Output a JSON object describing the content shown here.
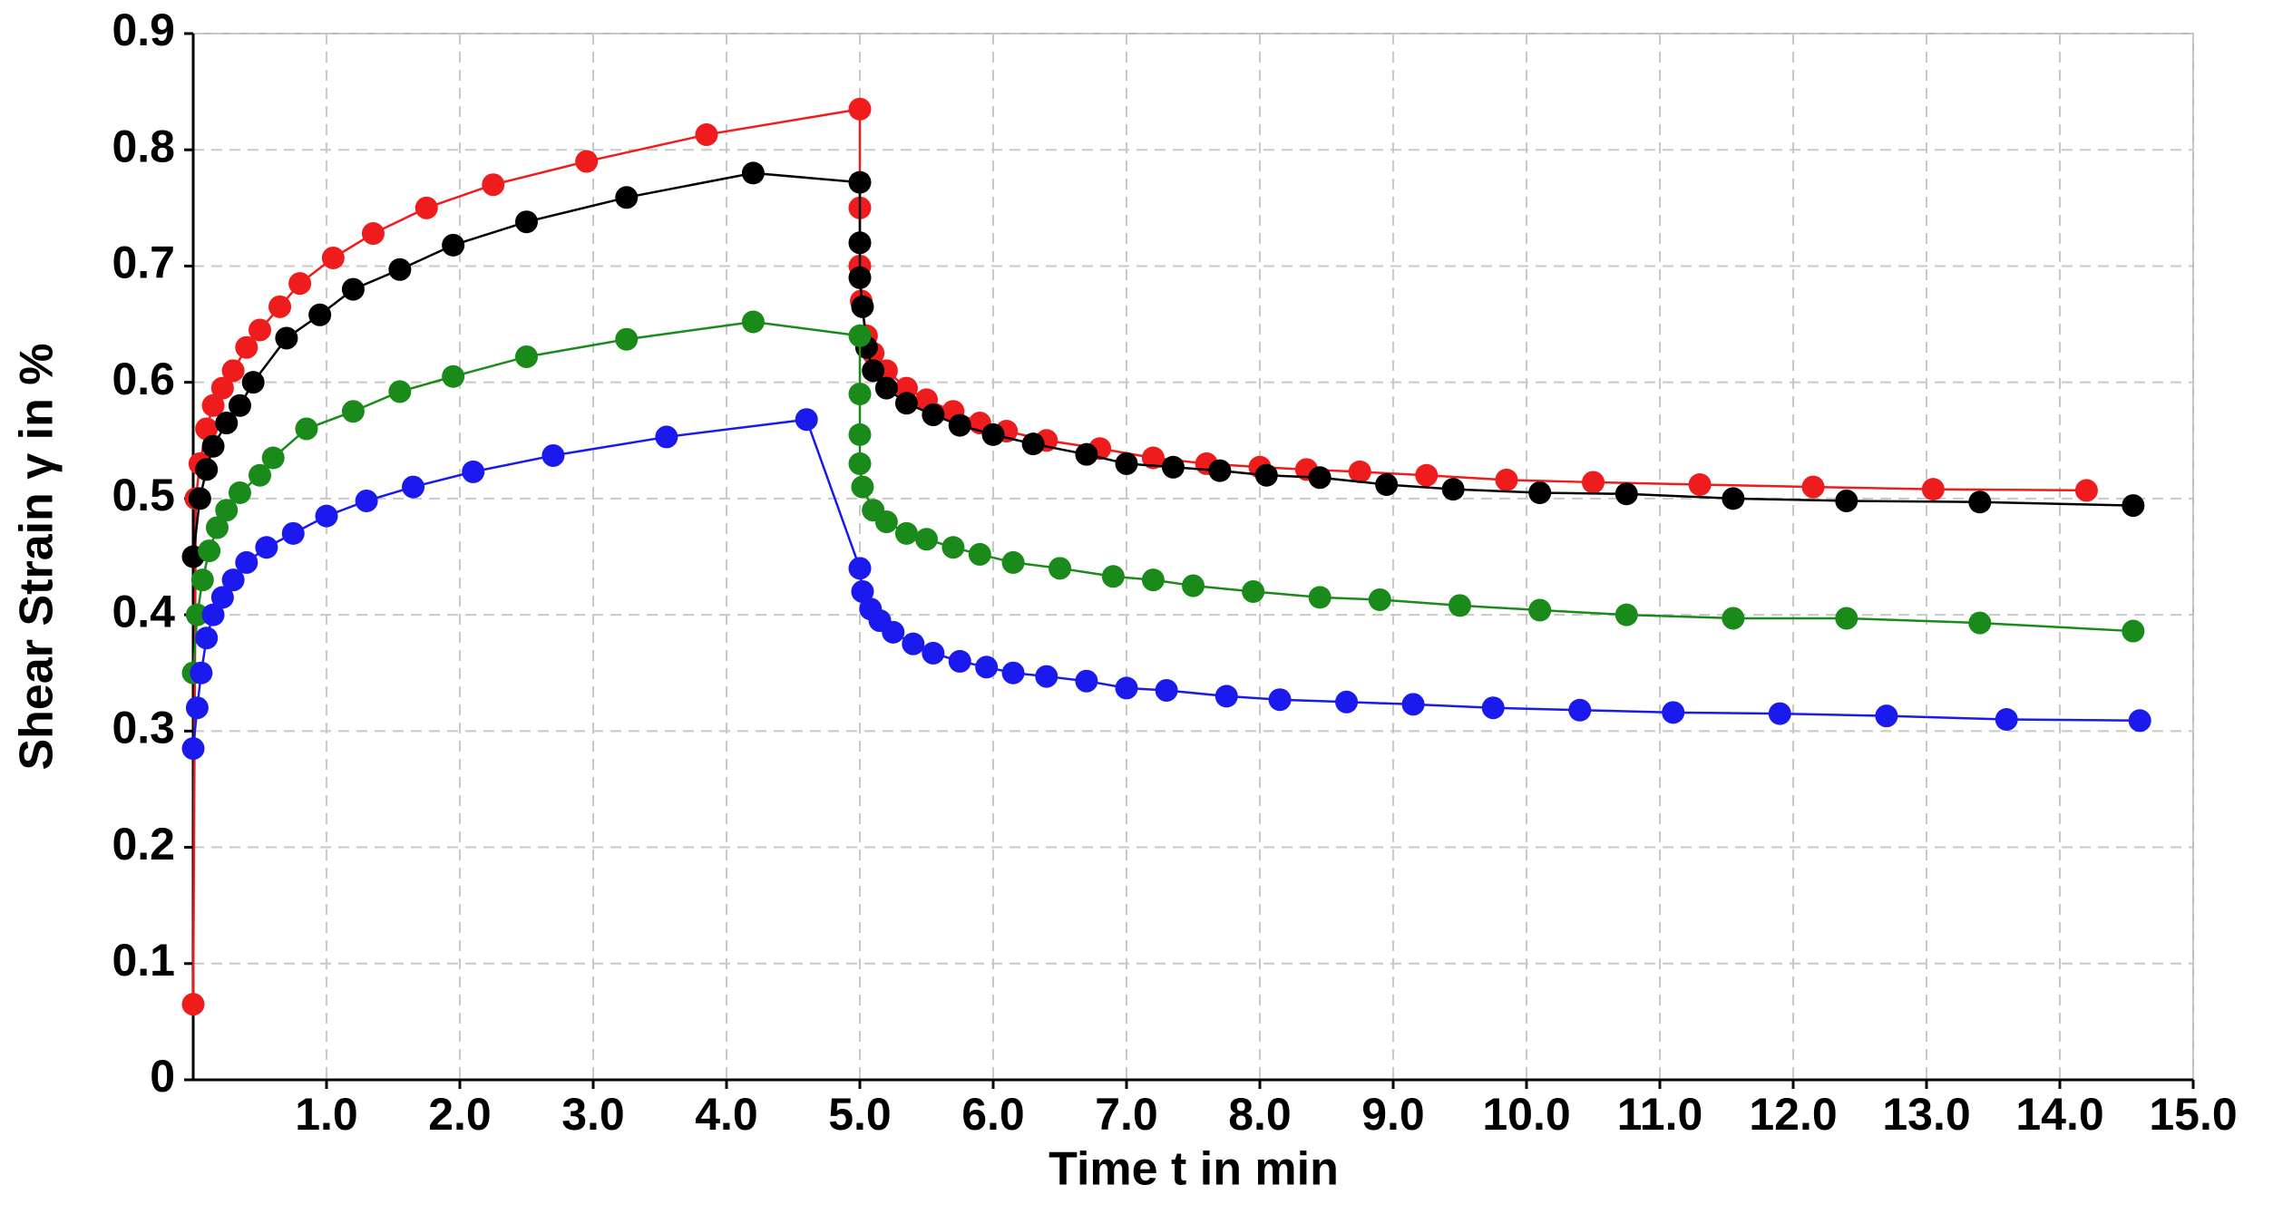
{
  "chart_data": {
    "type": "line",
    "xlabel": "Time t in min",
    "ylabel": "Shear Strain γ in %",
    "xlim": [
      0,
      15
    ],
    "ylim": [
      0,
      0.9
    ],
    "xticks": [
      {
        "value": 1,
        "label": "1.0"
      },
      {
        "value": 2,
        "label": "2.0"
      },
      {
        "value": 3,
        "label": "3.0"
      },
      {
        "value": 4,
        "label": "4.0"
      },
      {
        "value": 5,
        "label": "5.0"
      },
      {
        "value": 6,
        "label": "6.0"
      },
      {
        "value": 7,
        "label": "7.0"
      },
      {
        "value": 8,
        "label": "8.0"
      },
      {
        "value": 9,
        "label": "9.0"
      },
      {
        "value": 10,
        "label": "10.0"
      },
      {
        "value": 11,
        "label": "11.0"
      },
      {
        "value": 12,
        "label": "12.0"
      },
      {
        "value": 13,
        "label": "13.0"
      },
      {
        "value": 14,
        "label": "14.0"
      },
      {
        "value": 15,
        "label": "15.0"
      }
    ],
    "yticks": [
      0,
      0.1,
      0.2,
      0.3,
      0.4,
      0.5,
      0.6,
      0.7,
      0.8,
      0.9
    ],
    "grid": true,
    "series": [
      {
        "color": "#ee1c1c",
        "x": [
          0,
          0.02,
          0.05,
          0.1,
          0.15,
          0.22,
          0.3,
          0.4,
          0.5,
          0.65,
          0.8,
          1.05,
          1.35,
          1.75,
          2.25,
          2.95,
          3.85,
          5.0,
          5.0,
          5.0,
          5.01,
          5.05,
          5.1,
          5.2,
          5.35,
          5.5,
          5.7,
          5.9,
          6.1,
          6.4,
          6.8,
          7.2,
          7.6,
          8.0,
          8.35,
          8.75,
          9.25,
          9.85,
          10.5,
          11.3,
          12.15,
          13.05,
          14.2
        ],
        "values": [
          0.065,
          0.5,
          0.53,
          0.56,
          0.58,
          0.595,
          0.61,
          0.63,
          0.645,
          0.665,
          0.685,
          0.707,
          0.728,
          0.75,
          0.77,
          0.79,
          0.813,
          0.835,
          0.75,
          0.7,
          0.67,
          0.64,
          0.625,
          0.61,
          0.595,
          0.585,
          0.575,
          0.565,
          0.558,
          0.55,
          0.543,
          0.535,
          0.53,
          0.527,
          0.525,
          0.523,
          0.52,
          0.516,
          0.514,
          0.512,
          0.51,
          0.508,
          0.507
        ]
      },
      {
        "color": "#000000",
        "x": [
          0,
          0.05,
          0.1,
          0.15,
          0.25,
          0.35,
          0.45,
          0.7,
          0.95,
          1.2,
          1.55,
          1.95,
          2.5,
          3.25,
          4.2,
          5.0,
          5.0,
          5.0,
          5.02,
          5.05,
          5.1,
          5.2,
          5.35,
          5.55,
          5.75,
          6.0,
          6.3,
          6.7,
          7.0,
          7.35,
          7.7,
          8.05,
          8.45,
          8.95,
          9.45,
          10.1,
          10.75,
          11.55,
          12.4,
          13.4,
          14.55
        ],
        "values": [
          0.45,
          0.5,
          0.525,
          0.545,
          0.565,
          0.58,
          0.6,
          0.638,
          0.658,
          0.68,
          0.697,
          0.718,
          0.738,
          0.759,
          0.78,
          0.772,
          0.72,
          0.69,
          0.665,
          0.63,
          0.61,
          0.595,
          0.582,
          0.572,
          0.563,
          0.555,
          0.547,
          0.538,
          0.53,
          0.527,
          0.524,
          0.52,
          0.518,
          0.512,
          0.508,
          0.505,
          0.504,
          0.5,
          0.498,
          0.497,
          0.494
        ]
      },
      {
        "color": "#1a8a1a",
        "x": [
          0,
          0.03,
          0.07,
          0.12,
          0.18,
          0.25,
          0.35,
          0.5,
          0.6,
          0.85,
          1.2,
          1.55,
          1.95,
          2.5,
          3.25,
          4.2,
          5.0,
          5.0,
          5.0,
          5.0,
          5.02,
          5.1,
          5.2,
          5.35,
          5.5,
          5.7,
          5.9,
          6.15,
          6.5,
          6.9,
          7.2,
          7.5,
          7.95,
          8.45,
          8.9,
          9.5,
          10.1,
          10.75,
          11.55,
          12.4,
          13.4,
          14.55
        ],
        "values": [
          0.35,
          0.4,
          0.43,
          0.455,
          0.475,
          0.49,
          0.505,
          0.52,
          0.535,
          0.56,
          0.575,
          0.592,
          0.605,
          0.622,
          0.637,
          0.652,
          0.64,
          0.59,
          0.555,
          0.53,
          0.51,
          0.49,
          0.48,
          0.47,
          0.465,
          0.458,
          0.452,
          0.445,
          0.44,
          0.433,
          0.43,
          0.425,
          0.42,
          0.415,
          0.413,
          0.408,
          0.404,
          0.4,
          0.397,
          0.397,
          0.393,
          0.386
        ]
      },
      {
        "color": "#1a1aee",
        "x": [
          0,
          0.03,
          0.06,
          0.1,
          0.15,
          0.22,
          0.3,
          0.4,
          0.55,
          0.75,
          1.0,
          1.3,
          1.65,
          2.1,
          2.7,
          3.55,
          4.6,
          5.0,
          5.02,
          5.08,
          5.15,
          5.25,
          5.4,
          5.55,
          5.75,
          5.95,
          6.15,
          6.4,
          6.7,
          7.0,
          7.3,
          7.75,
          8.15,
          8.65,
          9.15,
          9.75,
          10.4,
          11.1,
          11.9,
          12.7,
          13.6,
          14.6
        ],
        "values": [
          0.285,
          0.32,
          0.35,
          0.38,
          0.4,
          0.415,
          0.43,
          0.445,
          0.458,
          0.47,
          0.485,
          0.498,
          0.51,
          0.523,
          0.537,
          0.553,
          0.568,
          0.44,
          0.42,
          0.405,
          0.395,
          0.385,
          0.375,
          0.367,
          0.36,
          0.355,
          0.35,
          0.347,
          0.343,
          0.337,
          0.335,
          0.33,
          0.327,
          0.325,
          0.323,
          0.32,
          0.318,
          0.316,
          0.315,
          0.313,
          0.31,
          0.309
        ]
      }
    ]
  }
}
